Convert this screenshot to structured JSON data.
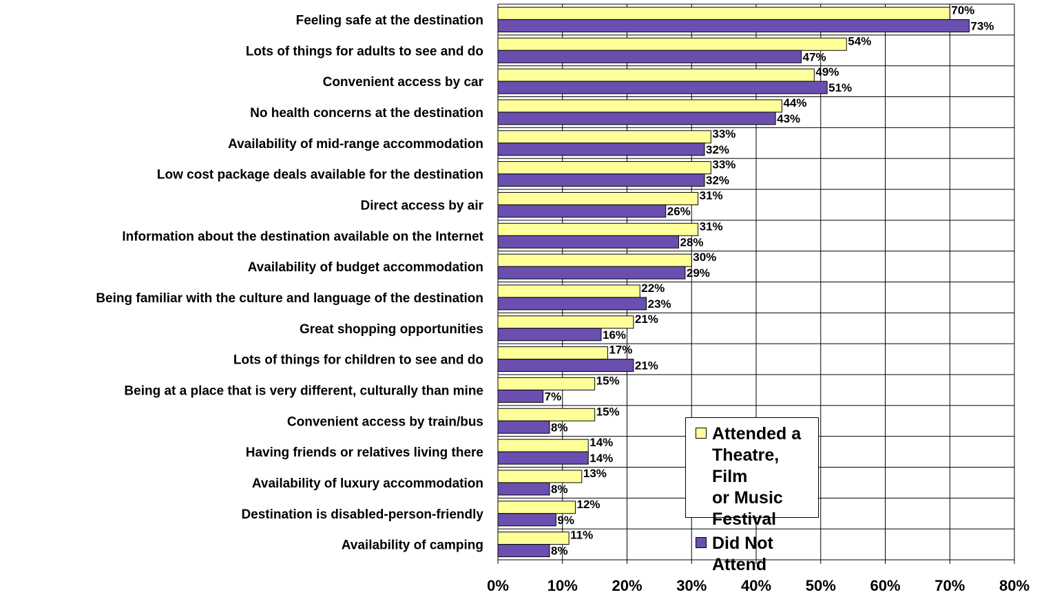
{
  "chart_data": {
    "type": "bar",
    "orientation": "horizontal",
    "categories": [
      "Feeling safe at the destination",
      "Lots of things for adults to see and do",
      "Convenient access by car",
      "No health concerns at the destination",
      "Availability of mid-range accommodation",
      "Low cost package deals available for the destination",
      "Direct access by air",
      "Information about the destination available on the Internet",
      "Availability of budget accommodation",
      "Being familiar with the culture and language of the destination",
      "Great shopping opportunities",
      "Lots of things for children to see and do",
      "Being at a place that is very different, culturally than mine",
      "Convenient access by train/bus",
      "Having friends or relatives living there",
      "Availability of luxury accommodation",
      "Destination is disabled-person-friendly",
      "Availability of camping"
    ],
    "series": [
      {
        "name": "Attended a Theatre, Film or Music Festival",
        "color": "#FFFF99",
        "values": [
          70,
          54,
          49,
          44,
          33,
          33,
          31,
          31,
          30,
          22,
          21,
          17,
          15,
          15,
          14,
          13,
          12,
          11
        ],
        "labels": [
          "70%",
          "54%",
          "49%",
          "44%",
          "33%",
          "33%",
          "31%",
          "31%",
          "30%",
          "22%",
          "21%",
          "17%",
          "15%",
          "15%",
          "14%",
          "13%",
          "12%",
          "11%"
        ]
      },
      {
        "name": "Did Not Attend",
        "color": "#6A4FB0",
        "values": [
          73,
          47,
          51,
          43,
          32,
          32,
          26,
          28,
          29,
          23,
          16,
          21,
          7,
          8,
          14,
          8,
          9,
          8
        ],
        "labels": [
          "73%",
          "47%",
          "51%",
          "43%",
          "32%",
          "32%",
          "26%",
          "28%",
          "29%",
          "23%",
          "16%",
          "21%",
          "7%",
          "8%",
          "14%",
          "8%",
          "9%",
          "8%"
        ]
      }
    ],
    "xlim": [
      0,
      80
    ],
    "x_ticks": [
      "0%",
      "10%",
      "20%",
      "30%",
      "40%",
      "50%",
      "60%",
      "70%",
      "80%"
    ],
    "grid": true,
    "legend_position": "lower-right inside plot"
  },
  "legend": {
    "attended_label_line1": "Attended a Theatre, Film",
    "attended_label_line2": "or Music Festival",
    "not_attended_label": "Did Not Attend"
  }
}
